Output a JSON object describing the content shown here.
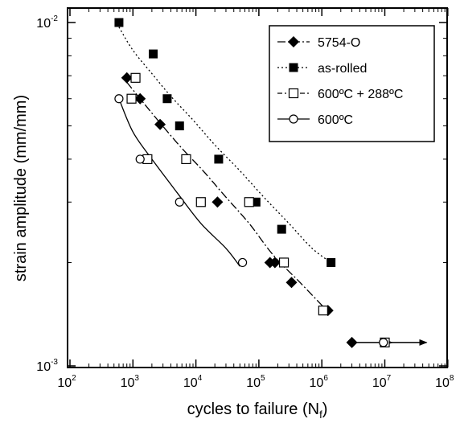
{
  "chart_data": {
    "type": "scatter",
    "xlabel": "cycles to failure (N",
    "xlabel_sub": "f",
    "xlabel_end": ")",
    "ylabel": "strain amplitude (mm/mm)",
    "x_scale": "log",
    "y_scale": "log",
    "xlim": [
      100,
      100000000
    ],
    "ylim": [
      0.001,
      0.01
    ],
    "x_ticks": [
      {
        "value": 100,
        "base": "10",
        "exp": "2"
      },
      {
        "value": 1000,
        "base": "10",
        "exp": "3"
      },
      {
        "value": 10000,
        "base": "10",
        "exp": "4"
      },
      {
        "value": 100000,
        "base": "10",
        "exp": "5"
      },
      {
        "value": 1000000,
        "base": "10",
        "exp": "6"
      },
      {
        "value": 10000000,
        "base": "10",
        "exp": "7"
      },
      {
        "value": 100000000,
        "base": "10",
        "exp": "8"
      }
    ],
    "y_ticks": [
      {
        "value": 0.001,
        "base": "10",
        "exp": "-3"
      },
      {
        "value": 0.01,
        "base": "10",
        "exp": "-2"
      }
    ],
    "grid": false,
    "legend_position": "top-right",
    "series": [
      {
        "name": "5754-O",
        "marker": "diamond-filled",
        "line": "dashdot-long",
        "color": "#000000",
        "points": [
          [
            800,
            0.0069
          ],
          [
            1300,
            0.006
          ],
          [
            2700,
            0.00505
          ],
          [
            22000,
            0.003
          ],
          [
            150000,
            0.002
          ],
          [
            180000,
            0.002
          ],
          [
            330000,
            0.00175
          ],
          [
            1250000,
            0.00145
          ]
        ],
        "fit": [
          [
            800,
            0.0067
          ],
          [
            1400,
            0.0059
          ],
          [
            2700,
            0.0051
          ],
          [
            6000,
            0.0043
          ],
          [
            13000,
            0.0037
          ],
          [
            30000,
            0.0031
          ],
          [
            70000,
            0.0026
          ],
          [
            170000,
            0.0021
          ],
          [
            450000,
            0.00175
          ],
          [
            1200000,
            0.00145
          ]
        ],
        "runouts": [
          [
            3000000,
            0.00117
          ]
        ]
      },
      {
        "name": "as-rolled",
        "marker": "square-filled",
        "line": "dotted",
        "color": "#000000",
        "points": [
          [
            600,
            0.01
          ],
          [
            2100,
            0.0081
          ],
          [
            3500,
            0.006
          ],
          [
            5500,
            0.005
          ],
          [
            23000,
            0.004
          ],
          [
            90000,
            0.003
          ],
          [
            230000,
            0.0025
          ],
          [
            1400000,
            0.002
          ]
        ],
        "fit": [
          [
            600,
            0.0097
          ],
          [
            1000,
            0.0083
          ],
          [
            2000,
            0.0071
          ],
          [
            4000,
            0.0061
          ],
          [
            9000,
            0.0052
          ],
          [
            20000,
            0.0044
          ],
          [
            50000,
            0.0037
          ],
          [
            120000,
            0.0031
          ],
          [
            300000,
            0.0026
          ],
          [
            700000,
            0.0022
          ],
          [
            1400000,
            0.002
          ]
        ]
      },
      {
        "name": "600ºC + 288ºC",
        "marker": "square-open",
        "line": "dashdot",
        "color": "#000000",
        "points": [
          [
            1100,
            0.0069
          ],
          [
            950,
            0.006
          ],
          [
            1700,
            0.004
          ],
          [
            7000,
            0.004
          ],
          [
            12000,
            0.003
          ],
          [
            70000,
            0.003
          ],
          [
            250000,
            0.002
          ],
          [
            1050000,
            0.00145
          ]
        ],
        "runouts": [
          [
            10000000,
            0.00117
          ]
        ]
      },
      {
        "name": "600ºC",
        "marker": "circle-open",
        "line": "solid",
        "color": "#000000",
        "points": [
          [
            600,
            0.006
          ],
          [
            1300,
            0.004
          ],
          [
            5500,
            0.003
          ],
          [
            55000,
            0.002
          ]
        ],
        "fit": [
          [
            600,
            0.006
          ],
          [
            1000,
            0.0048
          ],
          [
            2000,
            0.004
          ],
          [
            5000,
            0.0032
          ],
          [
            12000,
            0.0026
          ],
          [
            30000,
            0.0022
          ],
          [
            50000,
            0.00195
          ]
        ],
        "runouts": [
          [
            9500000,
            0.00117
          ]
        ]
      }
    ]
  }
}
